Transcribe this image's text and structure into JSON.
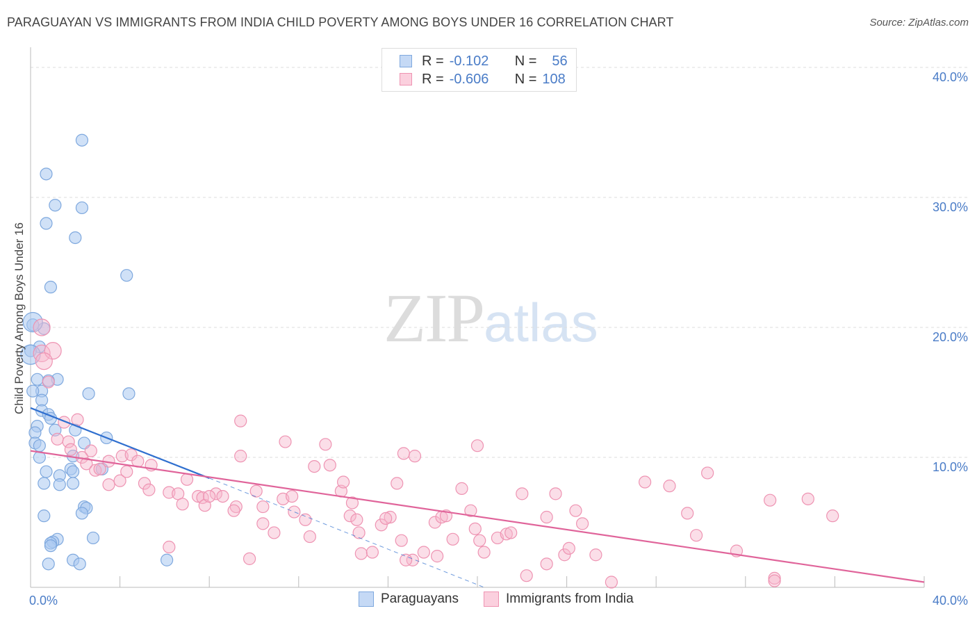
{
  "title": "PARAGUAYAN VS IMMIGRANTS FROM INDIA CHILD POVERTY AMONG BOYS UNDER 16 CORRELATION CHART",
  "source": "Source: ZipAtlas.com",
  "watermark": {
    "zip": "ZIP",
    "atlas": "atlas"
  },
  "legend": {
    "rows": [
      {
        "r_label": "R =",
        "r_value": "-0.102",
        "n_label": "N =",
        "n_value": "56"
      },
      {
        "r_label": "R =",
        "r_value": "-0.606",
        "n_label": "N =",
        "n_value": "108"
      }
    ]
  },
  "bottom_legend": {
    "series1": "Paraguayans",
    "series2": "Immigrants from India"
  },
  "colors": {
    "blue_fill": "#a9c8f0",
    "blue_stroke": "#7ea8de",
    "blue_line": "#2f6fcf",
    "pink_fill": "#f6b6cb",
    "pink_stroke": "#ee93b2",
    "pink_line": "#e0649a",
    "axis_text": "#4a7cc7"
  },
  "chart_data": {
    "type": "scatter",
    "title": "PARAGUAYAN VS IMMIGRANTS FROM INDIA CHILD POVERTY AMONG BOYS UNDER 16 CORRELATION CHART",
    "xlabel": "",
    "ylabel": "Child Poverty Among Boys Under 16",
    "xlim": [
      0,
      40
    ],
    "ylim": [
      0,
      40
    ],
    "x_tick_labels": [
      "0.0%",
      "40.0%"
    ],
    "y_tick_labels": [
      "10.0%",
      "20.0%",
      "30.0%",
      "40.0%"
    ],
    "y_ticks": [
      10,
      20,
      30,
      40
    ],
    "x_minor_ticks": [
      4,
      8,
      12,
      16,
      20,
      24,
      28,
      32,
      36,
      40
    ],
    "grid": true,
    "series": [
      {
        "name": "Paraguayans",
        "color": "blue",
        "trend": {
          "x0": 0,
          "y0": 13.8,
          "x1": 8,
          "y1": 8.4,
          "dash_to_x": 20.3,
          "dash_to_y": 0
        },
        "points": [
          [
            2.3,
            34.4
          ],
          [
            0.7,
            31.8
          ],
          [
            1.1,
            29.4
          ],
          [
            2.3,
            29.2
          ],
          [
            0.7,
            28.0
          ],
          [
            2.0,
            26.9
          ],
          [
            4.3,
            24.0
          ],
          [
            0.9,
            23.1
          ],
          [
            0.1,
            20.2
          ],
          [
            0.6,
            19.9
          ],
          [
            0.4,
            18.5
          ],
          [
            0.0,
            18.2
          ],
          [
            1.2,
            16.0
          ],
          [
            0.3,
            16.0
          ],
          [
            0.8,
            15.9
          ],
          [
            2.6,
            14.9
          ],
          [
            4.4,
            14.9
          ],
          [
            0.5,
            15.1
          ],
          [
            0.1,
            15.1
          ],
          [
            0.5,
            14.4
          ],
          [
            0.5,
            13.6
          ],
          [
            0.8,
            13.3
          ],
          [
            0.9,
            13.0
          ],
          [
            0.3,
            12.4
          ],
          [
            2.0,
            12.1
          ],
          [
            1.1,
            12.1
          ],
          [
            0.2,
            11.9
          ],
          [
            0.2,
            11.1
          ],
          [
            2.4,
            11.1
          ],
          [
            0.4,
            10.9
          ],
          [
            3.4,
            11.5
          ],
          [
            0.4,
            10.0
          ],
          [
            1.9,
            10.1
          ],
          [
            1.8,
            9.1
          ],
          [
            1.3,
            8.6
          ],
          [
            3.2,
            9.1
          ],
          [
            1.9,
            8.9
          ],
          [
            0.7,
            8.9
          ],
          [
            0.6,
            8.0
          ],
          [
            1.3,
            7.9
          ],
          [
            1.9,
            8.0
          ],
          [
            2.4,
            6.2
          ],
          [
            2.5,
            6.1
          ],
          [
            2.3,
            5.7
          ],
          [
            0.6,
            5.5
          ],
          [
            2.8,
            3.8
          ],
          [
            1.2,
            3.7
          ],
          [
            1.0,
            3.5
          ],
          [
            0.9,
            3.4
          ],
          [
            0.9,
            3.2
          ],
          [
            1.9,
            2.1
          ],
          [
            2.2,
            1.8
          ],
          [
            6.1,
            2.1
          ],
          [
            0.8,
            1.8
          ],
          [
            0.0,
            17.9
          ],
          [
            0.1,
            20.4
          ]
        ]
      },
      {
        "name": "Immigrants from India",
        "color": "pink",
        "trend": {
          "x0": 0,
          "y0": 10.5,
          "x1": 40,
          "y1": 0.4
        },
        "points": [
          [
            0.5,
            20.0
          ],
          [
            0.5,
            18.0
          ],
          [
            1.0,
            18.2
          ],
          [
            0.6,
            17.4
          ],
          [
            0.8,
            15.8
          ],
          [
            1.5,
            12.7
          ],
          [
            2.1,
            12.9
          ],
          [
            1.2,
            11.4
          ],
          [
            1.7,
            11.2
          ],
          [
            1.8,
            10.6
          ],
          [
            2.7,
            10.5
          ],
          [
            2.3,
            10.0
          ],
          [
            2.5,
            9.5
          ],
          [
            2.9,
            9.0
          ],
          [
            3.1,
            9.1
          ],
          [
            3.5,
            9.7
          ],
          [
            4.1,
            10.1
          ],
          [
            4.5,
            10.2
          ],
          [
            4.8,
            9.7
          ],
          [
            5.4,
            9.4
          ],
          [
            3.5,
            7.9
          ],
          [
            4.0,
            8.2
          ],
          [
            4.3,
            8.9
          ],
          [
            5.1,
            8.0
          ],
          [
            5.3,
            7.5
          ],
          [
            6.2,
            7.3
          ],
          [
            6.6,
            7.2
          ],
          [
            6.8,
            6.4
          ],
          [
            7.0,
            8.3
          ],
          [
            7.5,
            7.0
          ],
          [
            7.7,
            6.9
          ],
          [
            7.8,
            6.3
          ],
          [
            8.3,
            7.2
          ],
          [
            8.0,
            7.0
          ],
          [
            8.6,
            7.0
          ],
          [
            9.2,
            6.2
          ],
          [
            9.1,
            5.9
          ],
          [
            9.4,
            10.1
          ],
          [
            9.4,
            12.8
          ],
          [
            10.1,
            7.4
          ],
          [
            10.4,
            4.9
          ],
          [
            10.4,
            6.2
          ],
          [
            10.9,
            4.2
          ],
          [
            11.3,
            6.8
          ],
          [
            11.4,
            11.2
          ],
          [
            11.7,
            7.0
          ],
          [
            11.8,
            5.8
          ],
          [
            12.3,
            5.2
          ],
          [
            12.7,
            9.3
          ],
          [
            12.5,
            3.9
          ],
          [
            13.2,
            11.0
          ],
          [
            13.4,
            9.4
          ],
          [
            13.9,
            7.4
          ],
          [
            14.0,
            8.1
          ],
          [
            14.3,
            5.5
          ],
          [
            14.4,
            6.5
          ],
          [
            14.7,
            4.2
          ],
          [
            14.8,
            2.6
          ],
          [
            15.3,
            2.7
          ],
          [
            15.7,
            4.8
          ],
          [
            16.1,
            5.4
          ],
          [
            16.4,
            8.0
          ],
          [
            16.7,
            10.3
          ],
          [
            17.2,
            10.1
          ],
          [
            17.1,
            2.1
          ],
          [
            17.6,
            2.7
          ],
          [
            18.1,
            5.0
          ],
          [
            18.4,
            5.4
          ],
          [
            18.6,
            5.5
          ],
          [
            16.8,
            2.1
          ],
          [
            18.9,
            3.7
          ],
          [
            19.3,
            7.6
          ],
          [
            19.7,
            5.9
          ],
          [
            19.9,
            4.5
          ],
          [
            20.0,
            10.9
          ],
          [
            20.1,
            3.6
          ],
          [
            20.3,
            2.7
          ],
          [
            20.9,
            3.8
          ],
          [
            21.3,
            4.1
          ],
          [
            21.5,
            4.2
          ],
          [
            22.0,
            7.2
          ],
          [
            22.2,
            0.9
          ],
          [
            23.1,
            5.4
          ],
          [
            23.1,
            1.8
          ],
          [
            23.5,
            7.2
          ],
          [
            23.9,
            2.5
          ],
          [
            24.1,
            3.0
          ],
          [
            24.4,
            5.9
          ],
          [
            24.7,
            4.9
          ],
          [
            25.3,
            2.5
          ],
          [
            26.0,
            0.4
          ],
          [
            27.5,
            8.1
          ],
          [
            28.6,
            7.8
          ],
          [
            29.4,
            5.7
          ],
          [
            29.8,
            4.0
          ],
          [
            30.3,
            8.8
          ],
          [
            31.6,
            2.8
          ],
          [
            33.1,
            6.7
          ],
          [
            33.3,
            0.7
          ],
          [
            33.3,
            0.5
          ],
          [
            34.8,
            6.8
          ],
          [
            35.9,
            5.5
          ],
          [
            18.2,
            2.4
          ],
          [
            15.9,
            5.3
          ],
          [
            6.2,
            3.1
          ],
          [
            9.8,
            2.2
          ],
          [
            14.6,
            5.2
          ],
          [
            16.6,
            3.6
          ]
        ]
      }
    ]
  }
}
